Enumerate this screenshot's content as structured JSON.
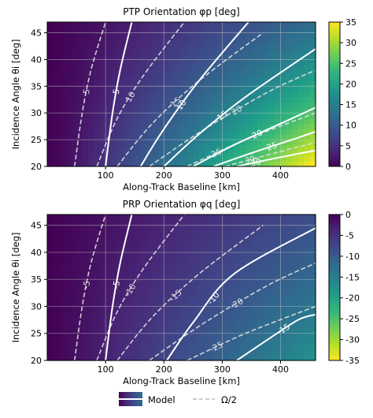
{
  "chart_data": [
    {
      "type": "heatmap",
      "title": "PTP Orientation φp [deg]",
      "xlabel": "Along-Track Baseline [km]",
      "ylabel": "Incidence Angle θi [deg]",
      "xlim": [
        0,
        460
      ],
      "ylim": [
        20,
        47
      ],
      "xticks": [
        "100",
        "200",
        "300",
        "400"
      ],
      "yticks": [
        "20",
        "25",
        "30",
        "35",
        "40",
        "45"
      ],
      "colorbar": {
        "min": 0,
        "max": 35,
        "ticks": [
          "0",
          "5",
          "10",
          "15",
          "20",
          "25",
          "30",
          "35"
        ],
        "colormap": "viridis"
      },
      "grid": true,
      "model_contours": [
        {
          "level": "5",
          "points": [
            [
              100,
              20
            ],
            [
              112,
              30
            ],
            [
              125,
              38
            ],
            [
              145,
              47
            ]
          ]
        },
        {
          "level": "10",
          "points": [
            [
              160,
              20
            ],
            [
              200,
              27
            ],
            [
              260,
              36
            ],
            [
              345,
              47
            ]
          ]
        },
        {
          "level": "15",
          "points": [
            [
              200,
              20
            ],
            [
              260,
              26
            ],
            [
              340,
              33
            ],
            [
              460,
              42
            ]
          ]
        },
        {
          "level": "20",
          "points": [
            [
              250,
              20
            ],
            [
              320,
              24
            ],
            [
              400,
              28
            ],
            [
              460,
              31
            ]
          ]
        },
        {
          "level": "25",
          "points": [
            [
              285,
              20
            ],
            [
              350,
              22.5
            ],
            [
              420,
              25
            ],
            [
              460,
              26.5
            ]
          ]
        },
        {
          "level": "30",
          "points": [
            [
              325,
              20
            ],
            [
              390,
              21.5
            ],
            [
              460,
              23
            ]
          ]
        }
      ],
      "omega_contours": [
        {
          "level": "5",
          "points": [
            [
              47,
              20
            ],
            [
              60,
              30
            ],
            [
              75,
              38
            ],
            [
              100,
              47
            ]
          ]
        },
        {
          "level": "10",
          "points": [
            [
              85,
              20
            ],
            [
              120,
              29
            ],
            [
              165,
              37
            ],
            [
              235,
              47
            ]
          ]
        },
        {
          "level": "15",
          "points": [
            [
              120,
              20
            ],
            [
              180,
              28
            ],
            [
              260,
              36
            ],
            [
              370,
              45
            ]
          ]
        },
        {
          "level": "20",
          "points": [
            [
              175,
              20
            ],
            [
              270,
              27
            ],
            [
              380,
              34
            ],
            [
              460,
              38
            ]
          ]
        },
        {
          "level": "25",
          "points": [
            [
              240,
              20
            ],
            [
              340,
              25
            ],
            [
              460,
              30
            ]
          ]
        },
        {
          "level": "30",
          "points": [
            [
              305,
              20
            ],
            [
              390,
              22.5
            ],
            [
              460,
              24.5
            ]
          ]
        }
      ],
      "intensity_map": "phi_p ≈ 0 at small baseline, increasing with baseline and decreasing with incidence angle; max ≈ 35 at (460 km, 20°)"
    },
    {
      "type": "heatmap",
      "title": "PRP Orientation φq [deg]",
      "xlabel": "Along-Track Baseline [km]",
      "ylabel": "Incidence Angle θi [deg]",
      "xlim": [
        0,
        460
      ],
      "ylim": [
        20,
        47
      ],
      "xticks": [
        "100",
        "200",
        "300",
        "400"
      ],
      "yticks": [
        "20",
        "25",
        "30",
        "35",
        "40",
        "45"
      ],
      "colorbar": {
        "min": -35,
        "max": 0,
        "ticks": [
          "0",
          "-5",
          "-10",
          "-15",
          "-20",
          "-25",
          "-30",
          "-35"
        ],
        "colormap": "viridis_r"
      },
      "grid": true,
      "model_contours": [
        {
          "level": "-5",
          "points": [
            [
              100,
              20
            ],
            [
              112,
              30
            ],
            [
              125,
              38
            ],
            [
              145,
              47
            ]
          ]
        },
        {
          "level": "-10",
          "points": [
            [
              205,
              20
            ],
            [
              250,
              27
            ],
            [
              320,
              36
            ],
            [
              460,
              44.5
            ]
          ]
        },
        {
          "level": "-15",
          "points": [
            [
              325,
              20
            ],
            [
              380,
              24
            ],
            [
              430,
              27.5
            ],
            [
              460,
              28.5
            ]
          ]
        }
      ],
      "omega_contours": [
        {
          "level": "-5",
          "points": [
            [
              47,
              20
            ],
            [
              60,
              30
            ],
            [
              75,
              38
            ],
            [
              100,
              47
            ]
          ]
        },
        {
          "level": "-10",
          "points": [
            [
              85,
              20
            ],
            [
              120,
              29
            ],
            [
              165,
              37
            ],
            [
              235,
              47
            ]
          ]
        },
        {
          "level": "-15",
          "points": [
            [
              120,
              20
            ],
            [
              180,
              28
            ],
            [
              260,
              36
            ],
            [
              370,
              45
            ]
          ]
        },
        {
          "level": "-20",
          "points": [
            [
              175,
              20
            ],
            [
              270,
              27
            ],
            [
              380,
              34
            ],
            [
              460,
              38
            ]
          ]
        },
        {
          "level": "-25",
          "points": [
            [
              240,
              20
            ],
            [
              340,
              25
            ],
            [
              460,
              30
            ]
          ]
        }
      ],
      "intensity_map": "phi_q ≈ 0 at small baseline, decreasing to ≈ -17 at (460 km, 20°)"
    }
  ],
  "legend": {
    "position": "bottom",
    "items": [
      {
        "label": "Model",
        "style": "solid"
      },
      {
        "label": "Ω/2",
        "style": "dashed"
      }
    ]
  }
}
